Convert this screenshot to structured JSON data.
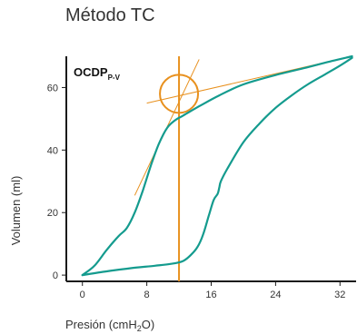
{
  "chart_data": {
    "type": "line",
    "title": "Método TC",
    "xlabel": {
      "main": "Presión (cmH",
      "sub": "2",
      "tail": "O)"
    },
    "ylabel": "Volumen (ml)",
    "xlim": [
      -2,
      34
    ],
    "ylim": [
      -2,
      70
    ],
    "x_ticks": [
      0,
      8,
      16,
      24,
      32
    ],
    "y_ticks": [
      0,
      20,
      40,
      60
    ],
    "grid": false,
    "legend": "none",
    "annotation": {
      "main": "OCDP",
      "sub": "P-V"
    },
    "colors": {
      "curve": "#149b8e",
      "marker": "#e8911f",
      "axis": "#1a1a1a",
      "text": "#333333"
    },
    "series": [
      {
        "x": [
          0,
          1.5,
          3,
          4.5,
          5.5,
          6.5,
          7.5,
          8.5,
          9.5,
          10.5,
          11.5,
          12.5,
          14.5,
          17,
          20,
          24,
          28,
          31,
          33.5
        ],
        "y": [
          0,
          3,
          8,
          12.5,
          15,
          20,
          27,
          35,
          42,
          47,
          49.5,
          51,
          54,
          57.5,
          61,
          64,
          66.5,
          68.5,
          70
        ]
      },
      {
        "x": [
          0,
          3,
          6,
          9,
          11,
          12.5,
          13.5,
          14.3,
          15,
          15.7,
          16.3,
          16.8,
          17,
          17.2,
          18,
          20,
          22,
          24,
          26,
          28,
          30,
          32,
          33.5
        ],
        "y": [
          0,
          1.2,
          2.2,
          3,
          3.6,
          4.5,
          6.5,
          9,
          13,
          19,
          24,
          26,
          28,
          30,
          34,
          42.5,
          48.5,
          53.5,
          57.5,
          61,
          64,
          67,
          69.5
        ]
      }
    ],
    "reference_lines": {
      "vertical_x": 12,
      "intersection": {
        "x": 12,
        "y": 58
      },
      "low_slope_line": {
        "x": [
          8,
          33.5
        ],
        "y": [
          55,
          70
        ]
      },
      "high_slope_line": {
        "x": [
          6.5,
          14.5
        ],
        "y": [
          25.5,
          69
        ]
      }
    }
  }
}
